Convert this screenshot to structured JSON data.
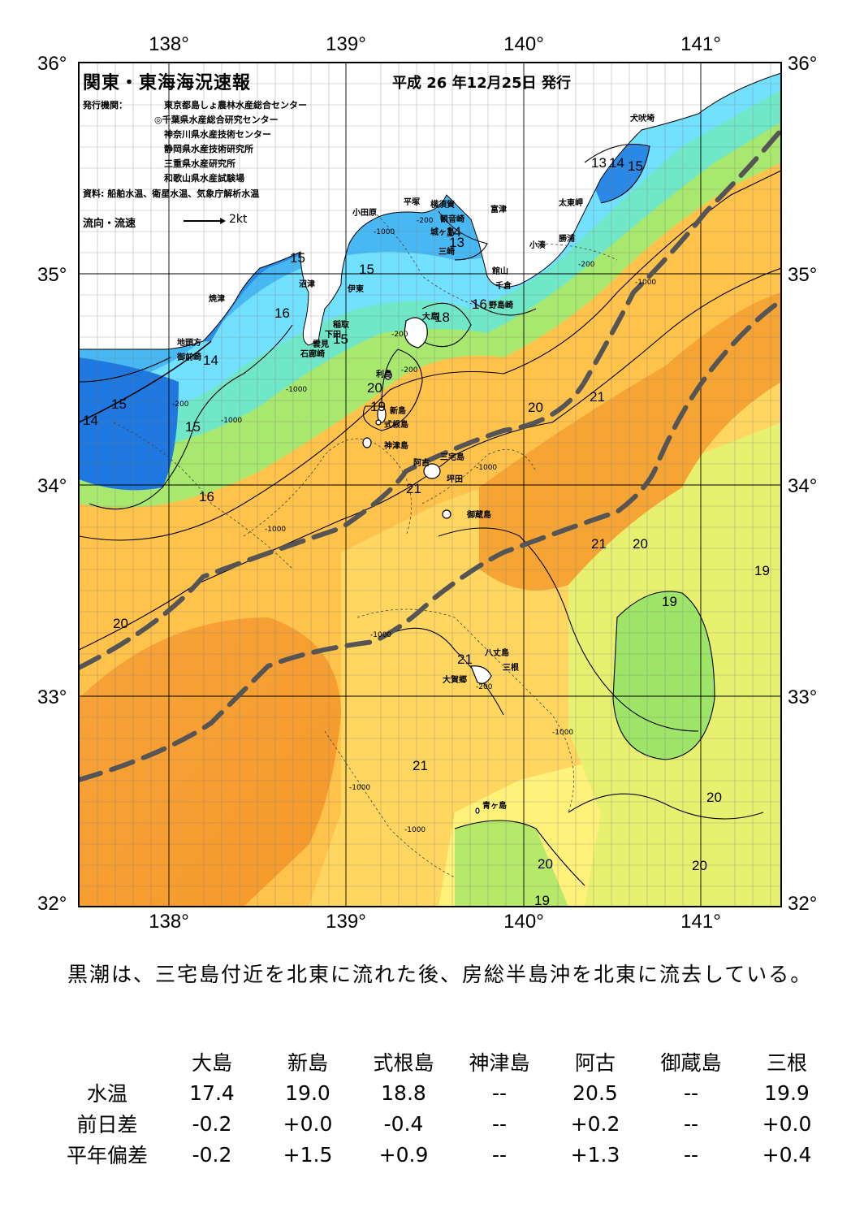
{
  "map": {
    "title": "関東・東海海況速報",
    "date": "平成 26 年12月25日 発行",
    "issuer_label": "発行機関：",
    "issuers": [
      "東京都島しょ農林水産総合センター",
      "◎千葉県水産総合研究センター",
      "神奈川県水産技術センター",
      "静岡県水産技術研究所",
      "三重県水産研究所",
      "和歌山県水産試験場"
    ],
    "source": "資料: 船舶水温、衛星水温、気象庁解析水温",
    "legend": {
      "label": "流向・流速",
      "value": "2kt"
    },
    "lon_ticks": [
      "138°",
      "139°",
      "140°",
      "141°"
    ],
    "lat_ticks": [
      "36°",
      "35°",
      "34°",
      "33°",
      "32°"
    ],
    "places": [
      {
        "name": "犬吠埼"
      },
      {
        "name": "太東岬"
      },
      {
        "name": "勝浦"
      },
      {
        "name": "小湊"
      },
      {
        "name": "富津"
      },
      {
        "name": "横須賀"
      },
      {
        "name": "観音崎"
      },
      {
        "name": "平塚"
      },
      {
        "name": "小田原"
      },
      {
        "name": "城ヶ島"
      },
      {
        "name": "三崎"
      },
      {
        "name": "館山"
      },
      {
        "name": "千倉"
      },
      {
        "name": "野島崎"
      },
      {
        "name": "沼津"
      },
      {
        "name": "伊東"
      },
      {
        "name": "焼津"
      },
      {
        "name": "稲取"
      },
      {
        "name": "下田"
      },
      {
        "name": "雲見"
      },
      {
        "name": "石廊崎"
      },
      {
        "name": "地頭方"
      },
      {
        "name": "御前崎"
      },
      {
        "name": "大島"
      },
      {
        "name": "利島"
      },
      {
        "name": "新島"
      },
      {
        "name": "式根島"
      },
      {
        "name": "神津島"
      },
      {
        "name": "三宅島"
      },
      {
        "name": "阿古"
      },
      {
        "name": "坪田"
      },
      {
        "name": "御蔵島"
      },
      {
        "name": "八丈島"
      },
      {
        "name": "三根"
      },
      {
        "name": "大賀郷"
      },
      {
        "name": "青ヶ島"
      }
    ],
    "isotherm_labels": [
      {
        "text": "13"
      },
      {
        "text": "14"
      },
      {
        "text": "15"
      },
      {
        "text": "14"
      },
      {
        "text": "13"
      },
      {
        "text": "15"
      },
      {
        "text": "15"
      },
      {
        "text": "16"
      },
      {
        "text": "16"
      },
      {
        "text": "18"
      },
      {
        "text": "15"
      },
      {
        "text": "14"
      },
      {
        "text": "15"
      },
      {
        "text": "14"
      },
      {
        "text": "15"
      },
      {
        "text": "16"
      },
      {
        "text": "20"
      },
      {
        "text": "19"
      },
      {
        "text": "20"
      },
      {
        "text": "21"
      },
      {
        "text": "21"
      },
      {
        "text": "21"
      },
      {
        "text": "20"
      },
      {
        "text": "19"
      },
      {
        "text": "19"
      },
      {
        "text": "20"
      },
      {
        "text": "21"
      },
      {
        "text": "21"
      },
      {
        "text": "20"
      },
      {
        "text": "20"
      },
      {
        "text": "20"
      },
      {
        "text": "19"
      }
    ],
    "depth_labels": [
      {
        "text": "-200"
      },
      {
        "text": "-1000"
      },
      {
        "text": "-200"
      },
      {
        "text": "-1000"
      },
      {
        "text": "-200"
      },
      {
        "text": "-1000"
      },
      {
        "text": "-200"
      },
      {
        "text": "-1000"
      },
      {
        "text": "-200"
      },
      {
        "text": "-1000"
      },
      {
        "text": "-1000"
      },
      {
        "text": "-1000"
      },
      {
        "text": "-200"
      },
      {
        "text": "-1000"
      },
      {
        "text": "-1000"
      },
      {
        "text": "-1000"
      }
    ],
    "colors": {
      "land": "#ffffff",
      "coast_cold": "#1e7fe0",
      "cyan": "#7ee8ff",
      "green": "#90e070",
      "yellow": "#fff280",
      "orange": "#f7a030",
      "kuroshio_axis": "#555555"
    }
  },
  "summary": "黒潮は、三宅島付近を北東に流れた後、房総半島沖を北東に流去している。",
  "table": {
    "columns": [
      "大島",
      "新島",
      "式根島",
      "神津島",
      "阿古",
      "御蔵島",
      "三根"
    ],
    "rows": [
      {
        "label": "水温",
        "values": [
          "17.4",
          "19.0",
          "18.8",
          "--",
          "20.5",
          "--",
          "19.9"
        ]
      },
      {
        "label": "前日差",
        "values": [
          "-0.2",
          "+0.0",
          "-0.4",
          "--",
          "+0.2",
          "--",
          "+0.0"
        ]
      },
      {
        "label": "平年偏差",
        "values": [
          "-0.2",
          "+1.5",
          "+0.9",
          "--",
          "+1.3",
          "--",
          "+0.4"
        ]
      }
    ]
  }
}
